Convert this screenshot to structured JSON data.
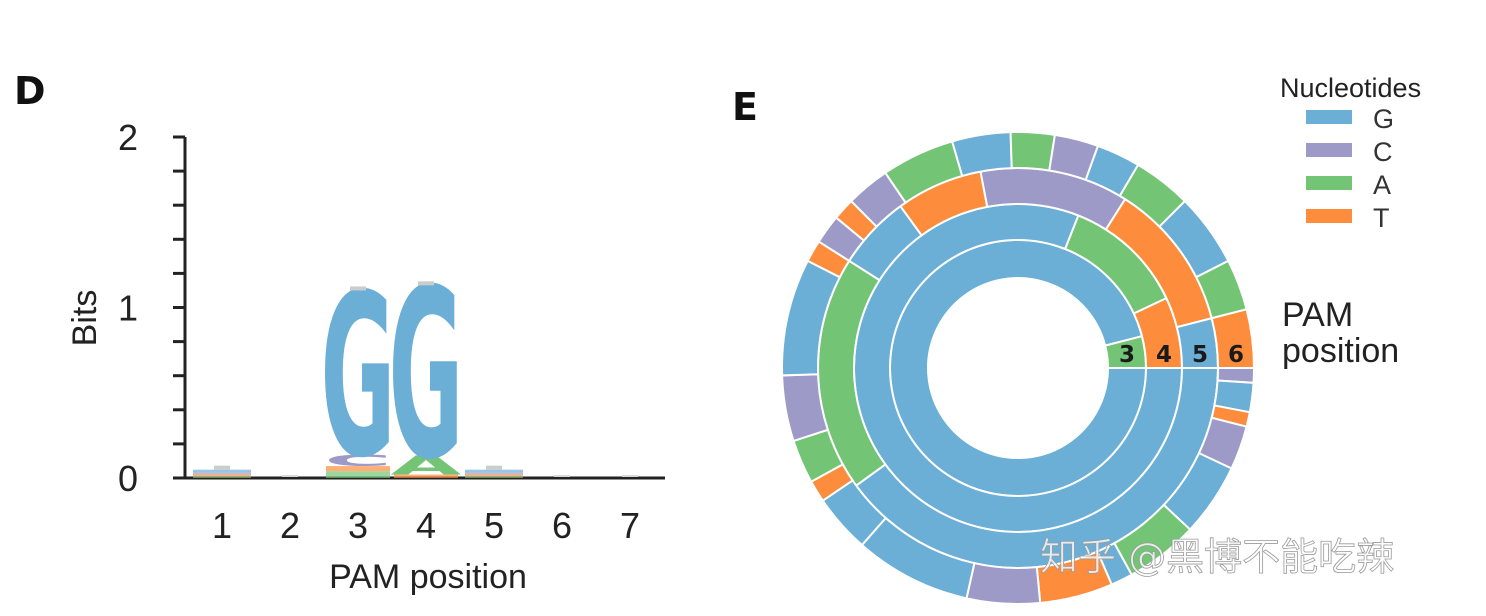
{
  "panels": {
    "logo_letter": "D",
    "sunburst_letter": "E"
  },
  "colors": {
    "G": "#6baed6",
    "C": "#9e9ac8",
    "A": "#74c476",
    "T": "#fd8d3c"
  },
  "chart_data": [
    {
      "type": "sequence-logo",
      "xlabel": "PAM position",
      "ylabel": "Bits",
      "ylim": [
        0,
        2
      ],
      "y_ticks": [
        "0",
        "1",
        "2"
      ],
      "x_ticks": [
        "1",
        "2",
        "3",
        "4",
        "5",
        "6",
        "7"
      ],
      "positions": [
        {
          "pos": "1",
          "letters": [
            {
              "base": "A",
              "bits": 0.008
            },
            {
              "base": "T",
              "bits": 0.012
            },
            {
              "base": "C",
              "bits": 0.012
            },
            {
              "base": "G",
              "bits": 0.016
            }
          ]
        },
        {
          "pos": "2",
          "letters": []
        },
        {
          "pos": "3",
          "letters": [
            {
              "base": "A",
              "bits": 0.04
            },
            {
              "base": "T",
              "bits": 0.03
            },
            {
              "base": "C",
              "bits": 0.07
            },
            {
              "base": "G",
              "bits": 0.96
            }
          ]
        },
        {
          "pos": "4",
          "letters": [
            {
              "base": "T",
              "bits": 0.02
            },
            {
              "base": "A",
              "bits": 0.11
            },
            {
              "base": "G",
              "bits": 1.0
            }
          ]
        },
        {
          "pos": "5",
          "letters": [
            {
              "base": "A",
              "bits": 0.008
            },
            {
              "base": "T",
              "bits": 0.012
            },
            {
              "base": "C",
              "bits": 0.012
            },
            {
              "base": "G",
              "bits": 0.016
            }
          ]
        },
        {
          "pos": "6",
          "letters": []
        },
        {
          "pos": "7",
          "letters": []
        }
      ]
    },
    {
      "type": "sunburst",
      "legend_title": "Nucleotides",
      "legend": [
        "G",
        "C",
        "A",
        "T"
      ],
      "side_label": [
        "PAM",
        "position"
      ],
      "ring_labels": [
        "3",
        "4",
        "5",
        "6"
      ],
      "rings": [
        {
          "pam_position": "3",
          "segments": [
            {
              "base": "G",
              "fraction": 0.96
            },
            {
              "base": "A",
              "fraction": 0.04
            }
          ]
        },
        {
          "pam_position": "4",
          "segments": [
            {
              "base": "G",
              "fraction": 0.81
            },
            {
              "base": "A",
              "fraction": 0.12
            },
            {
              "base": "T",
              "fraction": 0.07
            }
          ]
        },
        {
          "pam_position": "5",
          "segments": [
            {
              "base": "G",
              "fraction": 0.4
            },
            {
              "base": "A",
              "fraction": 0.19
            },
            {
              "base": "G",
              "fraction": 0.06
            },
            {
              "base": "T",
              "fraction": 0.07
            },
            {
              "base": "C",
              "fraction": 0.12
            },
            {
              "base": "T",
              "fraction": 0.12
            },
            {
              "base": "G",
              "fraction": 0.04
            }
          ]
        },
        {
          "pam_position": "6",
          "segments": [
            {
              "base": "T",
              "fraction": 0.04
            },
            {
              "base": "C",
              "fraction": 0.03
            },
            {
              "base": "G",
              "fraction": 0.05
            },
            {
              "base": "A",
              "fraction": 0.05
            },
            {
              "base": "G",
              "fraction": 0.015
            },
            {
              "base": "T",
              "fraction": 0.05
            },
            {
              "base": "C",
              "fraction": 0.05
            },
            {
              "base": "G",
              "fraction": 0.08
            },
            {
              "base": "G",
              "fraction": 0.04
            },
            {
              "base": "T",
              "fraction": 0.015
            },
            {
              "base": "A",
              "fraction": 0.03
            },
            {
              "base": "C",
              "fraction": 0.045
            },
            {
              "base": "G",
              "fraction": 0.08
            },
            {
              "base": "T",
              "fraction": 0.015
            },
            {
              "base": "C",
              "fraction": 0.02
            },
            {
              "base": "T",
              "fraction": 0.015
            },
            {
              "base": "C",
              "fraction": 0.03
            },
            {
              "base": "A",
              "fraction": 0.05
            },
            {
              "base": "G",
              "fraction": 0.04
            },
            {
              "base": "A",
              "fraction": 0.03
            },
            {
              "base": "C",
              "fraction": 0.03
            },
            {
              "base": "G",
              "fraction": 0.03
            },
            {
              "base": "A",
              "fraction": 0.04
            },
            {
              "base": "G",
              "fraction": 0.05
            },
            {
              "base": "A",
              "fraction": 0.035
            },
            {
              "base": "T",
              "fraction": 0.04
            },
            {
              "base": "C",
              "fraction": 0.01
            },
            {
              "base": "G",
              "fraction": 0.02
            }
          ]
        }
      ]
    }
  ],
  "watermark": "知乎 @黑博不能吃辣"
}
